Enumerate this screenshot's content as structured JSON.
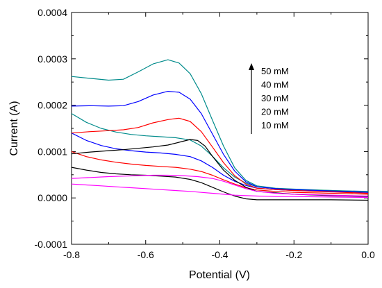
{
  "chart_data": {
    "type": "line",
    "xlabel": "Potential (V)",
    "ylabel": "Current (A)",
    "xlim": [
      -0.8,
      0.0
    ],
    "ylim": [
      -0.0001,
      0.0004
    ],
    "xticks": [
      -0.8,
      -0.6,
      -0.4,
      -0.2,
      0.0
    ],
    "xtick_labels": [
      "-0.8",
      "-0.6",
      "-0.4",
      "-0.2",
      "0.0"
    ],
    "yticks": [
      -0.0001,
      0.0,
      0.0001,
      0.0002,
      0.0003,
      0.0004
    ],
    "ytick_labels": [
      "-0.0001",
      "0.0000",
      "0.0001",
      "0.0002",
      "0.0003",
      "0.0004"
    ],
    "grid": false,
    "legend_position": "top-right",
    "legend_entries": [
      "50 mM",
      "40 mM",
      "30 mM",
      "20 mM",
      "10 mM"
    ],
    "legend_arrow": "up",
    "series": [
      {
        "color": "#008b8b",
        "forward": [
          [
            -0.8,
            0.000262
          ],
          [
            -0.75,
            0.000258
          ],
          [
            -0.7,
            0.000254
          ],
          [
            -0.66,
            0.000256
          ],
          [
            -0.62,
            0.000272
          ],
          [
            -0.58,
            0.000289
          ],
          [
            -0.54,
            0.000298
          ],
          [
            -0.51,
            0.000291
          ],
          [
            -0.48,
            0.000268
          ],
          [
            -0.45,
            0.000225
          ],
          [
            -0.42,
            0.000168
          ],
          [
            -0.39,
            0.000112
          ],
          [
            -0.36,
            6.5e-05
          ],
          [
            -0.33,
            3.8e-05
          ],
          [
            -0.3,
            2.6e-05
          ],
          [
            -0.25,
            2.1e-05
          ],
          [
            -0.2,
            1.9e-05
          ],
          [
            -0.1,
            1.6e-05
          ],
          [
            0.0,
            1.3e-05
          ]
        ],
        "reverse": [
          [
            -0.8,
            0.000182
          ],
          [
            -0.76,
            0.000163
          ],
          [
            -0.72,
            0.00015
          ],
          [
            -0.68,
            0.000142
          ],
          [
            -0.64,
            0.000137
          ],
          [
            -0.6,
            0.000134
          ],
          [
            -0.56,
            0.000132
          ],
          [
            -0.52,
            0.00013
          ],
          [
            -0.48,
            0.000125
          ],
          [
            -0.45,
            0.000112
          ],
          [
            -0.42,
            9e-05
          ],
          [
            -0.39,
            6.5e-05
          ],
          [
            -0.36,
            4.5e-05
          ],
          [
            -0.33,
            3.2e-05
          ],
          [
            -0.3,
            2.4e-05
          ],
          [
            -0.25,
            2e-05
          ],
          [
            -0.2,
            1.8e-05
          ],
          [
            -0.1,
            1.6e-05
          ],
          [
            0.0,
            1.4e-05
          ]
        ]
      },
      {
        "color": "#0000ff",
        "forward": [
          [
            -0.8,
            0.000198
          ],
          [
            -0.75,
            0.000199
          ],
          [
            -0.7,
            0.000198
          ],
          [
            -0.66,
            0.000199
          ],
          [
            -0.62,
            0.000208
          ],
          [
            -0.58,
            0.000222
          ],
          [
            -0.54,
            0.00023
          ],
          [
            -0.51,
            0.000228
          ],
          [
            -0.48,
            0.000213
          ],
          [
            -0.45,
            0.000182
          ],
          [
            -0.42,
            0.000138
          ],
          [
            -0.39,
            9.4e-05
          ],
          [
            -0.36,
            5.8e-05
          ],
          [
            -0.33,
            3.5e-05
          ],
          [
            -0.3,
            2.4e-05
          ],
          [
            -0.25,
            2e-05
          ],
          [
            -0.2,
            1.8e-05
          ],
          [
            -0.1,
            1.5e-05
          ],
          [
            0.0,
            1.2e-05
          ]
        ],
        "reverse": [
          [
            -0.8,
            0.00014
          ],
          [
            -0.76,
            0.000124
          ],
          [
            -0.72,
            0.000113
          ],
          [
            -0.68,
            0.000106
          ],
          [
            -0.64,
            0.000102
          ],
          [
            -0.6,
            9.9e-05
          ],
          [
            -0.56,
            9.7e-05
          ],
          [
            -0.52,
            9.4e-05
          ],
          [
            -0.48,
            8.9e-05
          ],
          [
            -0.45,
            8e-05
          ],
          [
            -0.42,
            6.6e-05
          ],
          [
            -0.39,
            4.9e-05
          ],
          [
            -0.36,
            3.6e-05
          ],
          [
            -0.33,
            2.7e-05
          ],
          [
            -0.3,
            2.1e-05
          ],
          [
            -0.25,
            1.8e-05
          ],
          [
            -0.2,
            1.6e-05
          ],
          [
            -0.1,
            1.4e-05
          ],
          [
            0.0,
            1.2e-05
          ]
        ]
      },
      {
        "color": "#ff0000",
        "forward": [
          [
            -0.8,
            0.00014
          ],
          [
            -0.75,
            0.000143
          ],
          [
            -0.7,
            0.000145
          ],
          [
            -0.66,
            0.000147
          ],
          [
            -0.62,
            0.000152
          ],
          [
            -0.58,
            0.000162
          ],
          [
            -0.54,
            0.000169
          ],
          [
            -0.51,
            0.000172
          ],
          [
            -0.48,
            0.000165
          ],
          [
            -0.45,
            0.000143
          ],
          [
            -0.42,
            0.00011
          ],
          [
            -0.39,
            7.6e-05
          ],
          [
            -0.36,
            4.8e-05
          ],
          [
            -0.33,
            3e-05
          ],
          [
            -0.3,
            2.1e-05
          ],
          [
            -0.25,
            1.8e-05
          ],
          [
            -0.2,
            1.6e-05
          ],
          [
            -0.1,
            1.3e-05
          ],
          [
            0.0,
            1e-05
          ]
        ],
        "reverse": [
          [
            -0.8,
            0.0001
          ],
          [
            -0.76,
            8.9e-05
          ],
          [
            -0.72,
            8.2e-05
          ],
          [
            -0.68,
            7.7e-05
          ],
          [
            -0.64,
            7.3e-05
          ],
          [
            -0.6,
            7e-05
          ],
          [
            -0.56,
            6.8e-05
          ],
          [
            -0.52,
            6.6e-05
          ],
          [
            -0.48,
            6.2e-05
          ],
          [
            -0.45,
            5.7e-05
          ],
          [
            -0.42,
            4.9e-05
          ],
          [
            -0.39,
            3.9e-05
          ],
          [
            -0.36,
            3e-05
          ],
          [
            -0.33,
            2.2e-05
          ],
          [
            -0.3,
            1.7e-05
          ],
          [
            -0.25,
            1.4e-05
          ],
          [
            -0.2,
            1.2e-05
          ],
          [
            -0.1,
            1e-05
          ],
          [
            0.0,
            8e-06
          ]
        ]
      },
      {
        "color": "#000000",
        "forward": [
          [
            -0.8,
            9.5e-05
          ],
          [
            -0.75,
            9.9e-05
          ],
          [
            -0.7,
            0.000102
          ],
          [
            -0.66,
            0.000104
          ],
          [
            -0.62,
            0.000107
          ],
          [
            -0.58,
            0.00011
          ],
          [
            -0.54,
            0.000114
          ],
          [
            -0.51,
            0.00012
          ],
          [
            -0.48,
            0.000126
          ],
          [
            -0.46,
            0.000124
          ],
          [
            -0.44,
            0.000112
          ],
          [
            -0.42,
            9e-05
          ],
          [
            -0.39,
            6e-05
          ],
          [
            -0.36,
            3.8e-05
          ],
          [
            -0.33,
            2.3e-05
          ],
          [
            -0.3,
            1.4e-05
          ],
          [
            -0.25,
            1.1e-05
          ],
          [
            -0.2,
            8e-06
          ],
          [
            -0.1,
            5e-06
          ],
          [
            0.0,
            3e-06
          ]
        ],
        "reverse": [
          [
            -0.8,
            6.6e-05
          ],
          [
            -0.76,
            6e-05
          ],
          [
            -0.72,
            5.5e-05
          ],
          [
            -0.68,
            5.2e-05
          ],
          [
            -0.64,
            5e-05
          ],
          [
            -0.6,
            4.9e-05
          ],
          [
            -0.56,
            4.7e-05
          ],
          [
            -0.52,
            4.5e-05
          ],
          [
            -0.48,
            4e-05
          ],
          [
            -0.45,
            3.3e-05
          ],
          [
            -0.42,
            2.3e-05
          ],
          [
            -0.39,
            1.3e-05
          ],
          [
            -0.36,
            4e-06
          ],
          [
            -0.33,
            -2e-06
          ],
          [
            -0.3,
            -4e-06
          ],
          [
            -0.25,
            -4e-06
          ],
          [
            -0.2,
            -4e-06
          ],
          [
            -0.1,
            -4e-06
          ],
          [
            0.0,
            -5e-06
          ]
        ]
      },
      {
        "color": "#ff00ff",
        "forward": [
          [
            -0.8,
            4.2e-05
          ],
          [
            -0.75,
            4.4e-05
          ],
          [
            -0.7,
            4.6e-05
          ],
          [
            -0.66,
            4.7e-05
          ],
          [
            -0.62,
            4.8e-05
          ],
          [
            -0.58,
            4.9e-05
          ],
          [
            -0.54,
            4.9e-05
          ],
          [
            -0.5,
            4.8e-05
          ],
          [
            -0.46,
            4.6e-05
          ],
          [
            -0.42,
            4.2e-05
          ],
          [
            -0.39,
            3.6e-05
          ],
          [
            -0.36,
            2.8e-05
          ],
          [
            -0.33,
            2e-05
          ],
          [
            -0.3,
            1.4e-05
          ],
          [
            -0.25,
            1e-05
          ],
          [
            -0.2,
            8e-06
          ],
          [
            -0.1,
            6e-06
          ],
          [
            0.0,
            4e-06
          ]
        ],
        "reverse": [
          [
            -0.8,
            3e-05
          ],
          [
            -0.76,
            2.8e-05
          ],
          [
            -0.72,
            2.6e-05
          ],
          [
            -0.68,
            2.4e-05
          ],
          [
            -0.64,
            2.2e-05
          ],
          [
            -0.6,
            2e-05
          ],
          [
            -0.56,
            1.8e-05
          ],
          [
            -0.52,
            1.6e-05
          ],
          [
            -0.48,
            1.4e-05
          ],
          [
            -0.45,
            1.2e-05
          ],
          [
            -0.42,
            1e-05
          ],
          [
            -0.39,
            8e-06
          ],
          [
            -0.36,
            6e-06
          ],
          [
            -0.33,
            5e-06
          ],
          [
            -0.3,
            4e-06
          ],
          [
            -0.25,
            3e-06
          ],
          [
            -0.2,
            3e-06
          ],
          [
            -0.1,
            2e-06
          ],
          [
            0.0,
            1e-06
          ]
        ]
      }
    ]
  }
}
